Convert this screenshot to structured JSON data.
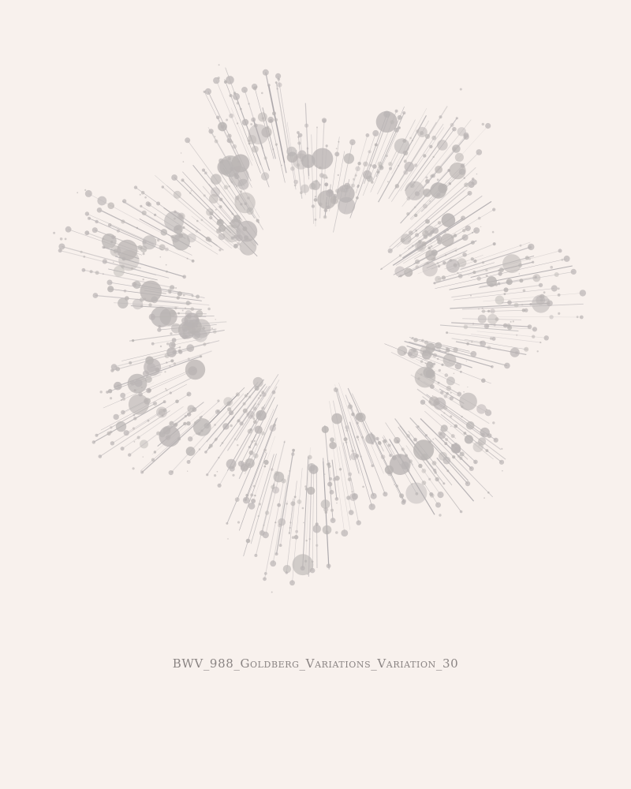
{
  "poster": {
    "title": "BWV_988_Goldberg_Variations_Variation_30",
    "colors": {
      "background": "#f8f1ed",
      "line": "#8c8a90",
      "dot": "#b9b4b3",
      "title": "#8a8483"
    }
  }
}
